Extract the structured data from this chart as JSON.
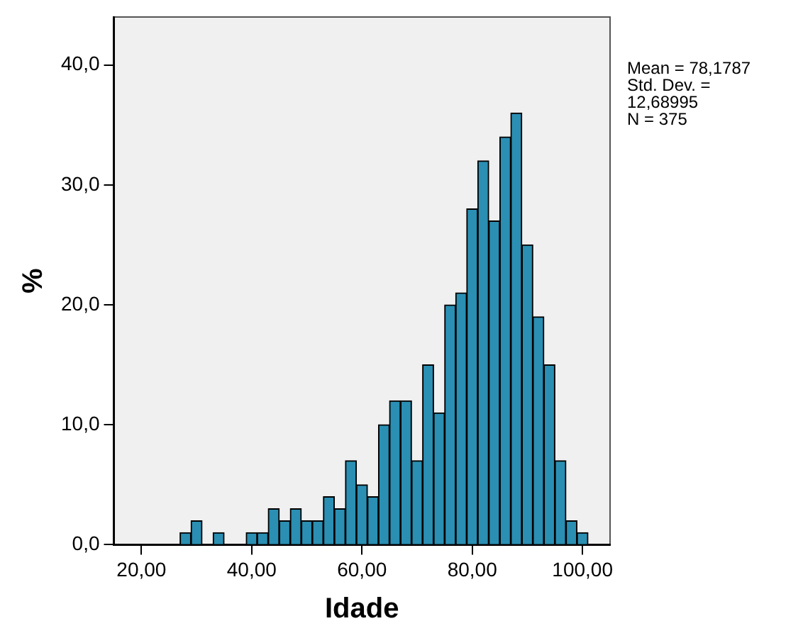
{
  "chart_data": {
    "type": "histogram",
    "xlabel": "Idade",
    "ylabel": "%",
    "bins": [
      27,
      29,
      31,
      33,
      35,
      37,
      39,
      41,
      43,
      45,
      47,
      49,
      51,
      53,
      55,
      57,
      59,
      61,
      63,
      65,
      67,
      69,
      71,
      73,
      75,
      77,
      79,
      81,
      83,
      85,
      87,
      89,
      91,
      93,
      95,
      97,
      99,
      101
    ],
    "values": [
      1,
      2,
      0,
      1,
      0,
      0,
      1,
      1,
      3,
      2,
      3,
      2,
      2,
      4,
      3,
      7,
      5,
      4,
      10,
      12,
      12,
      7,
      15,
      11,
      20,
      21,
      28,
      32,
      27,
      34,
      36,
      25,
      19,
      15,
      7,
      2,
      1
    ],
    "color": "#2a8fb3",
    "xlim": [
      15,
      105
    ],
    "xticks": [
      {
        "value": 20,
        "label": "20,00"
      },
      {
        "value": 40,
        "label": "40,00"
      },
      {
        "value": 60,
        "label": "60,00"
      },
      {
        "value": 80,
        "label": "80,00"
      },
      {
        "value": 100,
        "label": "100,00"
      }
    ],
    "ylim": [
      0,
      44
    ],
    "yticks": [
      {
        "value": 0,
        "label": "0,0"
      },
      {
        "value": 10,
        "label": "10,0"
      },
      {
        "value": 20,
        "label": "20,0"
      },
      {
        "value": 30,
        "label": "30,0"
      },
      {
        "value": 40,
        "label": "40,0"
      }
    ],
    "annotations": [
      "Mean = 78,1787",
      "Std. Dev. = 12,68995",
      "N = 375"
    ],
    "grid": false,
    "legend": false
  }
}
